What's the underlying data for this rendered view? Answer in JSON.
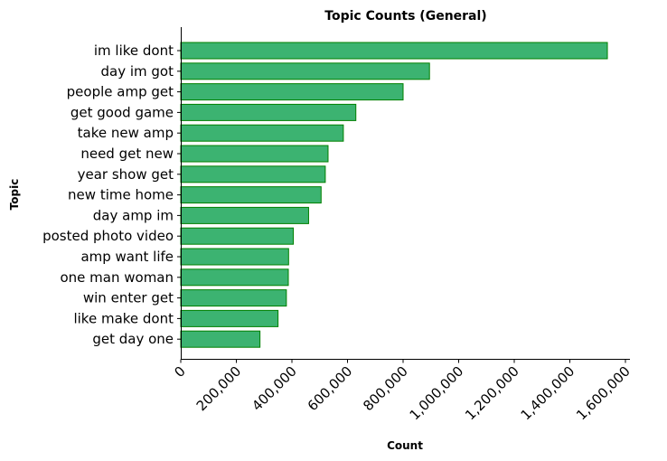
{
  "chart_data": {
    "type": "bar",
    "orientation": "horizontal",
    "title": "Topic Counts (General)",
    "xlabel": "Count",
    "ylabel": "Topic",
    "xlim": [
      0,
      1600000
    ],
    "x_ticks": [
      0,
      200000,
      400000,
      600000,
      800000,
      1000000,
      1200000,
      1400000,
      1600000
    ],
    "x_tick_labels": [
      "0",
      "200,000",
      "400,000",
      "600,000",
      "800,000",
      "1,000,000",
      "1,200,000",
      "1,400,000",
      "1,600,000"
    ],
    "categories": [
      "im like dont",
      "day im got",
      "people amp get",
      "get good game",
      "take new amp",
      "need get new",
      "year show get",
      "new time home",
      "day amp im",
      "posted photo video",
      "amp want life",
      "one man woman",
      "win enter get",
      "like make dont",
      "get day one"
    ],
    "values": [
      1535000,
      895000,
      800000,
      630000,
      585000,
      530000,
      520000,
      505000,
      460000,
      405000,
      388000,
      387000,
      380000,
      350000,
      285000
    ],
    "bar_color": "#3cb371",
    "bar_edge_color": "#008000",
    "grid": false,
    "legend": "none"
  }
}
